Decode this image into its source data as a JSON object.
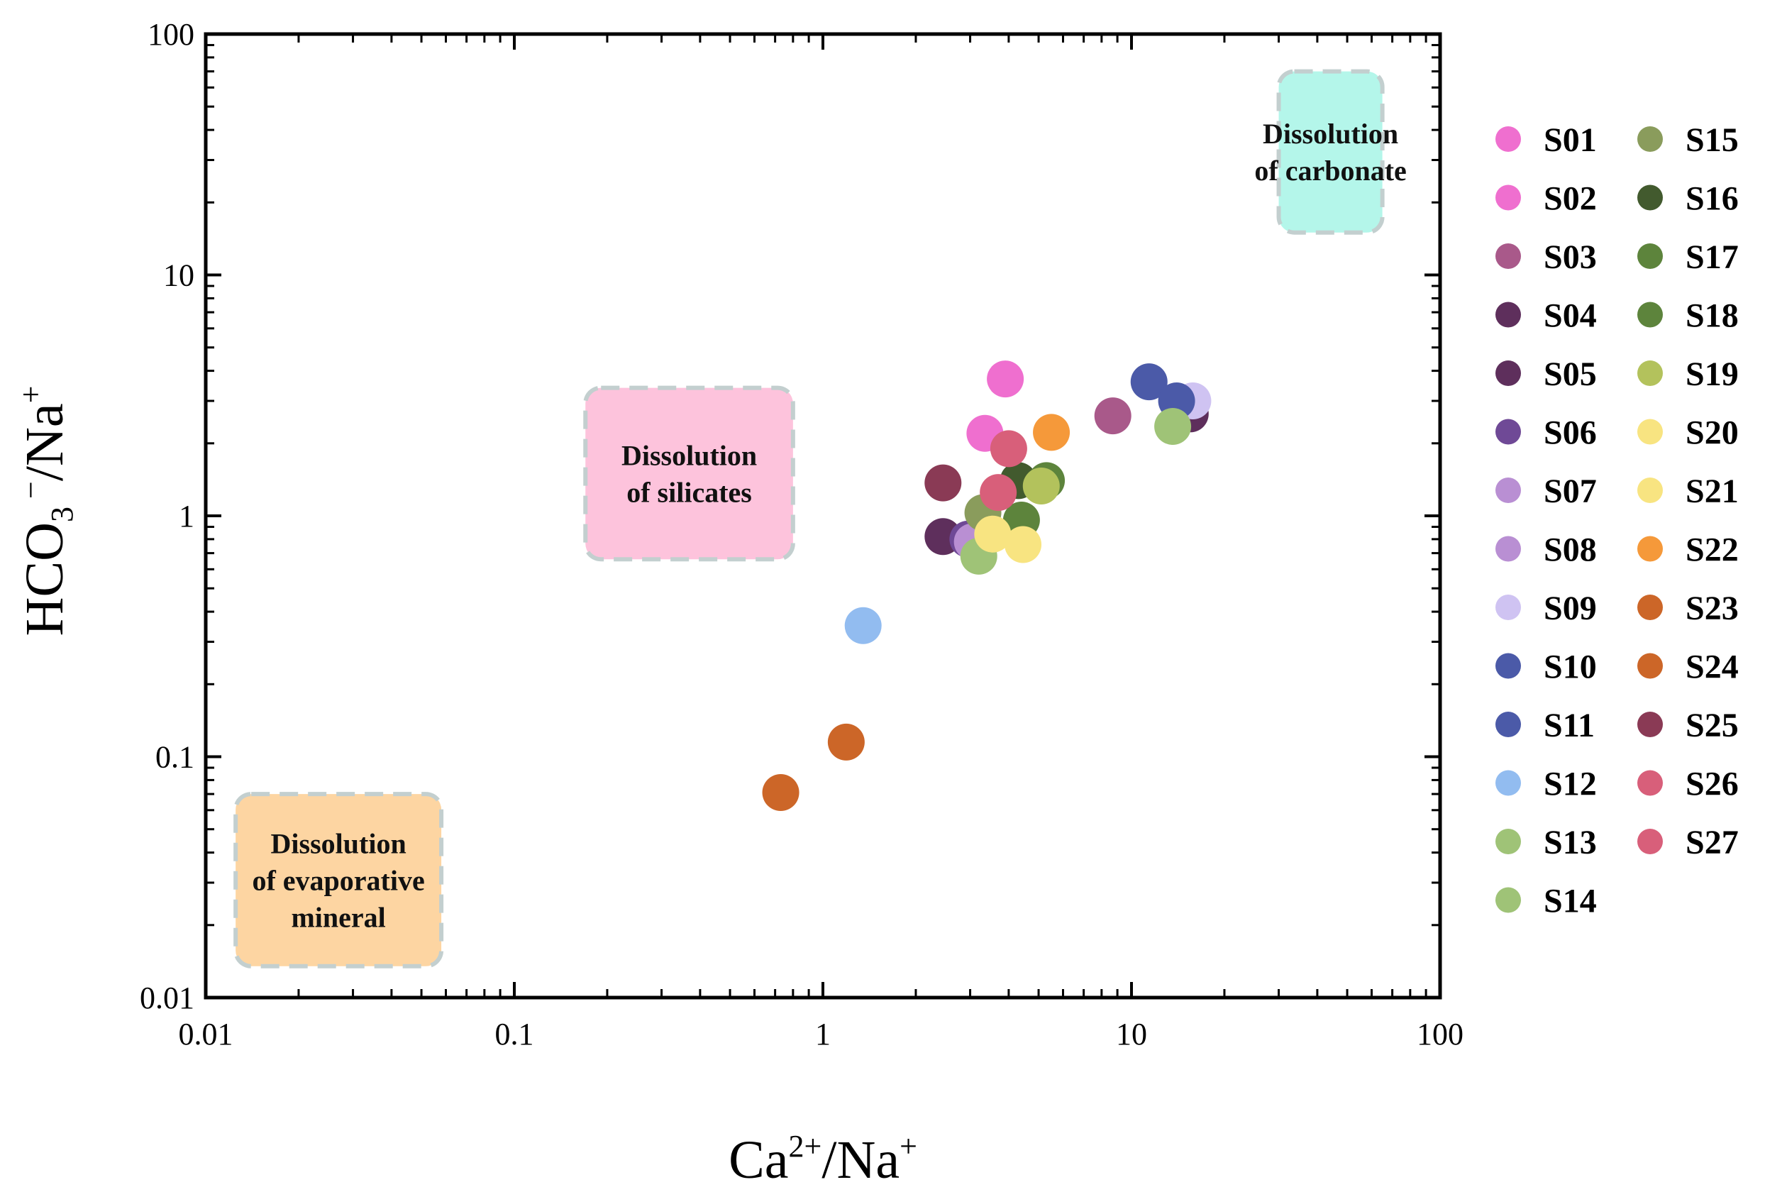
{
  "chart_data": {
    "type": "scatter",
    "title": "",
    "xlabel": "Ca²⁺/Na⁺",
    "ylabel": "HCO₃⁻/Na⁺",
    "xscale": "log",
    "yscale": "log",
    "xlim": [
      0.01,
      100
    ],
    "ylim": [
      0.01,
      100
    ],
    "xticks": [
      "0.01",
      "0.1",
      "1",
      "10",
      "100"
    ],
    "yticks": [
      "0.01",
      "0.1",
      "1",
      "10",
      "100"
    ],
    "legend_position": "right",
    "regions": [
      {
        "name": "carbonate",
        "lines": [
          "Dissolution",
          "of carbonate"
        ],
        "color": "#b4f6ea",
        "x_range": [
          30,
          65
        ],
        "y_range": [
          15,
          70
        ]
      },
      {
        "name": "silicates",
        "lines": [
          "Dissolution",
          "of silicates"
        ],
        "color": "#fdc3dc",
        "x_range": [
          0.17,
          0.8
        ],
        "y_range": [
          0.66,
          3.4
        ]
      },
      {
        "name": "evaporative",
        "lines": [
          "Dissolution",
          "of evaporative",
          "mineral"
        ],
        "color": "#fdd5a2",
        "x_range": [
          0.0125,
          0.058
        ],
        "y_range": [
          0.0135,
          0.07
        ]
      }
    ],
    "series": [
      {
        "name": "S01",
        "color": "#ef6fcf",
        "x": 3.9,
        "y": 3.7
      },
      {
        "name": "S02",
        "color": "#ef6fcf",
        "x": 3.35,
        "y": 2.2
      },
      {
        "name": "S03",
        "color": "#a9598a",
        "x": 8.7,
        "y": 2.6
      },
      {
        "name": "S04",
        "color": "#5e2f5c",
        "x": 15.5,
        "y": 2.65
      },
      {
        "name": "S05",
        "color": "#5e2f5c",
        "x": 2.45,
        "y": 0.82
      },
      {
        "name": "S06",
        "color": "#6f4996",
        "x": 2.95,
        "y": 0.8
      },
      {
        "name": "S07",
        "color": "#b98fd3",
        "x": 3.05,
        "y": 0.78
      },
      {
        "name": "S08",
        "color": "#b98fd3",
        "x": 3.2,
        "y": 0.76
      },
      {
        "name": "S09",
        "color": "#cfc3f2",
        "x": 15.8,
        "y": 3.0
      },
      {
        "name": "S10",
        "color": "#4b5aa8",
        "x": 11.4,
        "y": 3.6
      },
      {
        "name": "S11",
        "color": "#4b5aa8",
        "x": 14.0,
        "y": 3.0
      },
      {
        "name": "S12",
        "color": "#92bcf0",
        "x": 1.35,
        "y": 0.35
      },
      {
        "name": "S13",
        "color": "#9fc377",
        "x": 3.2,
        "y": 0.68
      },
      {
        "name": "S14",
        "color": "#9fc377",
        "x": 13.6,
        "y": 2.35
      },
      {
        "name": "S15",
        "color": "#8a9c5c",
        "x": 3.3,
        "y": 1.03
      },
      {
        "name": "S16",
        "color": "#425a2e",
        "x": 4.3,
        "y": 1.4
      },
      {
        "name": "S17",
        "color": "#5d843c",
        "x": 4.4,
        "y": 0.96
      },
      {
        "name": "S18",
        "color": "#5d843c",
        "x": 5.3,
        "y": 1.4
      },
      {
        "name": "S19",
        "color": "#b3c25c",
        "x": 5.1,
        "y": 1.33
      },
      {
        "name": "S20",
        "color": "#f8e481",
        "x": 3.55,
        "y": 0.84
      },
      {
        "name": "S21",
        "color": "#f8e481",
        "x": 4.45,
        "y": 0.76
      },
      {
        "name": "S22",
        "color": "#f5993a",
        "x": 5.5,
        "y": 2.22
      },
      {
        "name": "S23",
        "color": "#cc6628",
        "x": 1.19,
        "y": 0.115
      },
      {
        "name": "S24",
        "color": "#cc6628",
        "x": 0.73,
        "y": 0.071
      },
      {
        "name": "S25",
        "color": "#8a3a55",
        "x": 2.45,
        "y": 1.37
      },
      {
        "name": "S26",
        "color": "#d85f7a",
        "x": 4.0,
        "y": 1.9
      },
      {
        "name": "S27",
        "color": "#d85f7a",
        "x": 3.7,
        "y": 1.25
      }
    ]
  }
}
